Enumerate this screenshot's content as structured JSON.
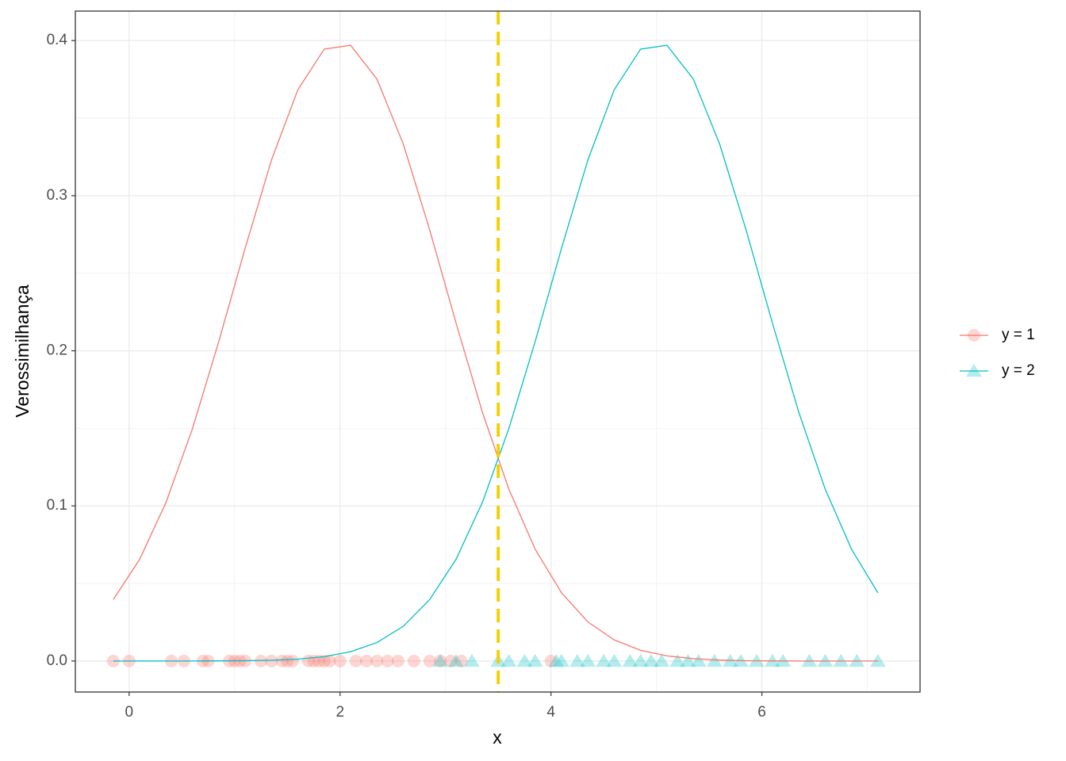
{
  "chart_data": {
    "type": "line",
    "x_label": "x",
    "y_label": "Verossimilhança",
    "xlim": [
      -0.51,
      7.5
    ],
    "ylim": [
      -0.02,
      0.419
    ],
    "xticks": [
      0,
      2,
      4,
      6
    ],
    "yticks": [
      {
        "value": 0,
        "label": "0.0"
      },
      0.1,
      0.2,
      0.3,
      0.4
    ],
    "x_minor_ticks": [
      1,
      3,
      5,
      7
    ],
    "y_minor_ticks": [
      0.05,
      0.15,
      0.25,
      0.35
    ],
    "grid": true,
    "legend": "right",
    "vline": {
      "x": 3.5,
      "color": "#f5d000",
      "style": "dashed"
    },
    "series": [
      {
        "name": "y = 1",
        "color": "#f8766d",
        "marker": "circle",
        "x": [
          -0.15,
          0.1,
          0.35,
          0.6,
          0.85,
          1.1,
          1.35,
          1.6,
          1.85,
          2.1,
          2.35,
          2.6,
          2.85,
          3.1,
          3.35,
          3.6,
          3.85,
          4.1,
          4.35,
          4.6,
          4.85,
          5.1,
          5.35,
          5.6,
          5.85,
          6.1,
          6.35,
          6.6,
          6.85,
          7.1
        ],
        "values": [
          0.0396,
          0.0656,
          0.1023,
          0.1497,
          0.2059,
          0.2661,
          0.323,
          0.3683,
          0.3945,
          0.397,
          0.3752,
          0.3332,
          0.278,
          0.2179,
          0.1604,
          0.1109,
          0.0721,
          0.044,
          0.0252,
          0.0136,
          0.0069,
          0.0033,
          0.0015,
          0.0006,
          0.0002,
          0.0001,
          0,
          0,
          0,
          0
        ],
        "points": {
          "x": [
            -0.15,
            0,
            0.4,
            0.52,
            0.7,
            0.75,
            0.95,
            1.0,
            1.05,
            1.1,
            1.25,
            1.35,
            1.45,
            1.5,
            1.55,
            1.7,
            1.75,
            1.8,
            1.85,
            1.9,
            2.0,
            2.15,
            2.25,
            2.35,
            2.45,
            2.55,
            2.7,
            2.85,
            2.95,
            3.05,
            3.15,
            4.0
          ],
          "values": [
            0,
            0,
            0,
            0,
            0,
            0,
            0,
            0,
            0,
            0,
            0,
            0,
            0,
            0,
            0,
            0,
            0,
            0,
            0,
            0,
            0,
            0,
            0,
            0,
            0,
            0,
            0,
            0,
            0,
            0,
            0,
            0
          ]
        }
      },
      {
        "name": "y = 2",
        "color": "#00bfc4",
        "marker": "triangle",
        "x": [
          -0.15,
          0.1,
          0.35,
          0.6,
          0.85,
          1.1,
          1.35,
          1.6,
          1.85,
          2.1,
          2.35,
          2.6,
          2.85,
          3.1,
          3.35,
          3.6,
          3.85,
          4.1,
          4.35,
          4.6,
          4.85,
          5.1,
          5.35,
          5.6,
          5.85,
          6.1,
          6.35,
          6.6,
          6.85,
          7.1
        ],
        "values": [
          0,
          0,
          0,
          0,
          0.0001,
          0.0002,
          0.0005,
          0.0012,
          0.0028,
          0.006,
          0.0119,
          0.0224,
          0.0396,
          0.0656,
          0.1023,
          0.1497,
          0.2059,
          0.2661,
          0.323,
          0.3683,
          0.3945,
          0.397,
          0.3752,
          0.3332,
          0.278,
          0.2179,
          0.1604,
          0.1109,
          0.0721,
          0.044
        ],
        "points": {
          "x": [
            2.95,
            3.1,
            3.25,
            3.5,
            3.6,
            3.75,
            3.85,
            4.05,
            4.1,
            4.25,
            4.35,
            4.5,
            4.6,
            4.75,
            4.85,
            4.95,
            5.05,
            5.2,
            5.3,
            5.4,
            5.55,
            5.7,
            5.8,
            5.95,
            6.1,
            6.2,
            6.45,
            6.6,
            6.75,
            6.9,
            7.1
          ],
          "values": [
            0,
            0,
            0,
            0,
            0,
            0,
            0,
            0,
            0,
            0,
            0,
            0,
            0,
            0,
            0,
            0,
            0,
            0,
            0,
            0,
            0,
            0,
            0,
            0,
            0,
            0,
            0,
            0,
            0,
            0,
            0
          ]
        }
      }
    ]
  }
}
